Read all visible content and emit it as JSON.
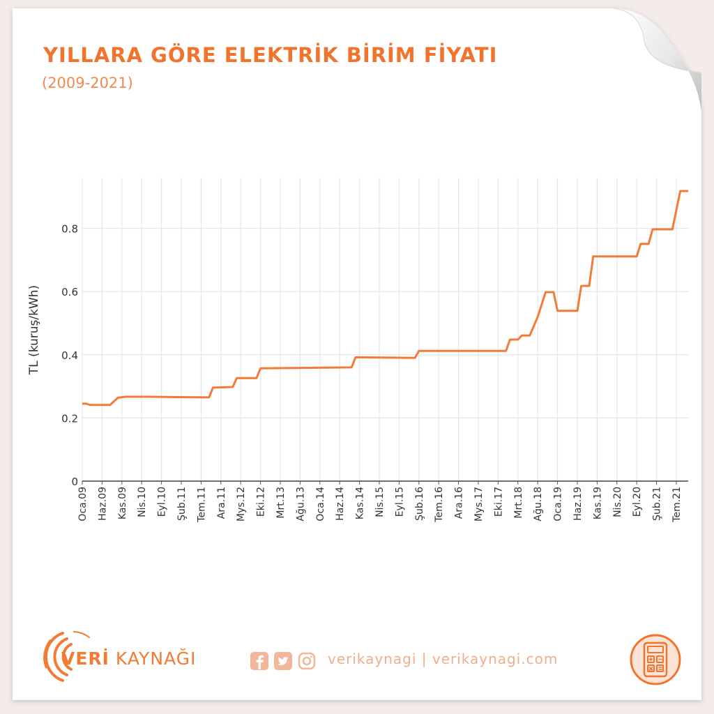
{
  "header": {
    "title": "YILLARA GÖRE ELEKTRİK BİRİM FİYATI",
    "subtitle": "(2009-2021)"
  },
  "footer": {
    "brand_bold": "VERİ",
    "brand_rest": " KAYNAĞI",
    "social_text": "verikaynagi | verikaynagi.com",
    "icons": [
      "facebook-icon",
      "twitter-icon",
      "instagram-icon",
      "calculator-icon"
    ]
  },
  "colors": {
    "accent": "#f2742c",
    "line": "#f47a38",
    "grid": "#e6e6e6",
    "background": "#f3ece9",
    "paper": "#ffffff"
  },
  "chart_data": {
    "type": "line",
    "title": "YILLARA GÖRE ELEKTRİK BİRİM FİYATI",
    "subtitle": "(2009-2021)",
    "xlabel": "",
    "ylabel": "TL (kuruş/kWh)",
    "ylim": [
      0,
      0.96
    ],
    "yticks": [
      0,
      0.2,
      0.4,
      0.6,
      0.8
    ],
    "ytick_labels": [
      "0",
      "0.2",
      "0.4",
      "0.6",
      "0.8"
    ],
    "xlim": [
      "2009-01",
      "2021-10"
    ],
    "xtick_labels": [
      {
        "date": "2009-01",
        "label": "Oca.09"
      },
      {
        "date": "2009-06",
        "label": "Haz.09"
      },
      {
        "date": "2009-11",
        "label": "Kas.09"
      },
      {
        "date": "2010-04",
        "label": "Nis.10"
      },
      {
        "date": "2010-09",
        "label": "Eyl.10"
      },
      {
        "date": "2011-02",
        "label": "Şub.11"
      },
      {
        "date": "2011-07",
        "label": "Tem.11"
      },
      {
        "date": "2011-12",
        "label": "Ara.11"
      },
      {
        "date": "2012-05",
        "label": "Mys.12"
      },
      {
        "date": "2012-10",
        "label": "Eki.12"
      },
      {
        "date": "2013-03",
        "label": "Mrt.13"
      },
      {
        "date": "2013-08",
        "label": "Ağu.13"
      },
      {
        "date": "2014-01",
        "label": "Oca.14"
      },
      {
        "date": "2014-06",
        "label": "Haz.14"
      },
      {
        "date": "2014-11",
        "label": "Kas.14"
      },
      {
        "date": "2015-04",
        "label": "Nis.15"
      },
      {
        "date": "2015-09",
        "label": "Eyl.15"
      },
      {
        "date": "2016-02",
        "label": "Şub.16"
      },
      {
        "date": "2016-07",
        "label": "Tem.16"
      },
      {
        "date": "2016-12",
        "label": "Ara.16"
      },
      {
        "date": "2017-05",
        "label": "Mys.17"
      },
      {
        "date": "2017-10",
        "label": "Eki.17"
      },
      {
        "date": "2018-03",
        "label": "Mrt.18"
      },
      {
        "date": "2018-08",
        "label": "Ağu.18"
      },
      {
        "date": "2019-01",
        "label": "Oca.19"
      },
      {
        "date": "2019-06",
        "label": "Haz.19"
      },
      {
        "date": "2019-11",
        "label": "Kas.19"
      },
      {
        "date": "2020-04",
        "label": "Nis.20"
      },
      {
        "date": "2020-09",
        "label": "Eyl.20"
      },
      {
        "date": "2021-02",
        "label": "Şub.21"
      },
      {
        "date": "2021-07",
        "label": "Tem.21"
      }
    ],
    "grid": true,
    "series": [
      {
        "points": [
          {
            "x": "2009-01",
            "y": 0.245
          },
          {
            "x": "2009-02",
            "y": 0.245
          },
          {
            "x": "2009-03",
            "y": 0.241
          },
          {
            "x": "2009-05",
            "y": 0.241
          },
          {
            "x": "2009-08",
            "y": 0.241
          },
          {
            "x": "2009-10",
            "y": 0.264
          },
          {
            "x": "2009-12",
            "y": 0.267
          },
          {
            "x": "2010-06",
            "y": 0.267
          },
          {
            "x": "2011-01",
            "y": 0.266
          },
          {
            "x": "2011-09",
            "y": 0.265
          },
          {
            "x": "2011-10",
            "y": 0.296
          },
          {
            "x": "2012-03",
            "y": 0.298
          },
          {
            "x": "2012-04",
            "y": 0.326
          },
          {
            "x": "2012-09",
            "y": 0.326
          },
          {
            "x": "2012-10",
            "y": 0.357
          },
          {
            "x": "2013-06",
            "y": 0.358
          },
          {
            "x": "2014-09",
            "y": 0.36
          },
          {
            "x": "2014-10",
            "y": 0.392
          },
          {
            "x": "2016-01",
            "y": 0.39
          },
          {
            "x": "2016-02",
            "y": 0.412
          },
          {
            "x": "2016-06",
            "y": 0.412
          },
          {
            "x": "2017-11",
            "y": 0.412
          },
          {
            "x": "2017-12",
            "y": 0.412
          },
          {
            "x": "2018-01",
            "y": 0.448
          },
          {
            "x": "2018-03",
            "y": 0.448
          },
          {
            "x": "2018-04",
            "y": 0.461
          },
          {
            "x": "2018-06",
            "y": 0.461
          },
          {
            "x": "2018-08",
            "y": 0.52
          },
          {
            "x": "2018-10",
            "y": 0.598
          },
          {
            "x": "2018-12",
            "y": 0.598
          },
          {
            "x": "2019-01",
            "y": 0.539
          },
          {
            "x": "2019-06",
            "y": 0.539
          },
          {
            "x": "2019-07",
            "y": 0.618
          },
          {
            "x": "2019-09",
            "y": 0.618
          },
          {
            "x": "2019-10",
            "y": 0.711
          },
          {
            "x": "2020-01",
            "y": 0.711
          },
          {
            "x": "2020-09",
            "y": 0.711
          },
          {
            "x": "2020-10",
            "y": 0.751
          },
          {
            "x": "2020-12",
            "y": 0.751
          },
          {
            "x": "2021-01",
            "y": 0.797
          },
          {
            "x": "2021-06",
            "y": 0.797
          },
          {
            "x": "2021-08",
            "y": 0.918
          },
          {
            "x": "2021-10",
            "y": 0.918
          }
        ]
      }
    ]
  }
}
